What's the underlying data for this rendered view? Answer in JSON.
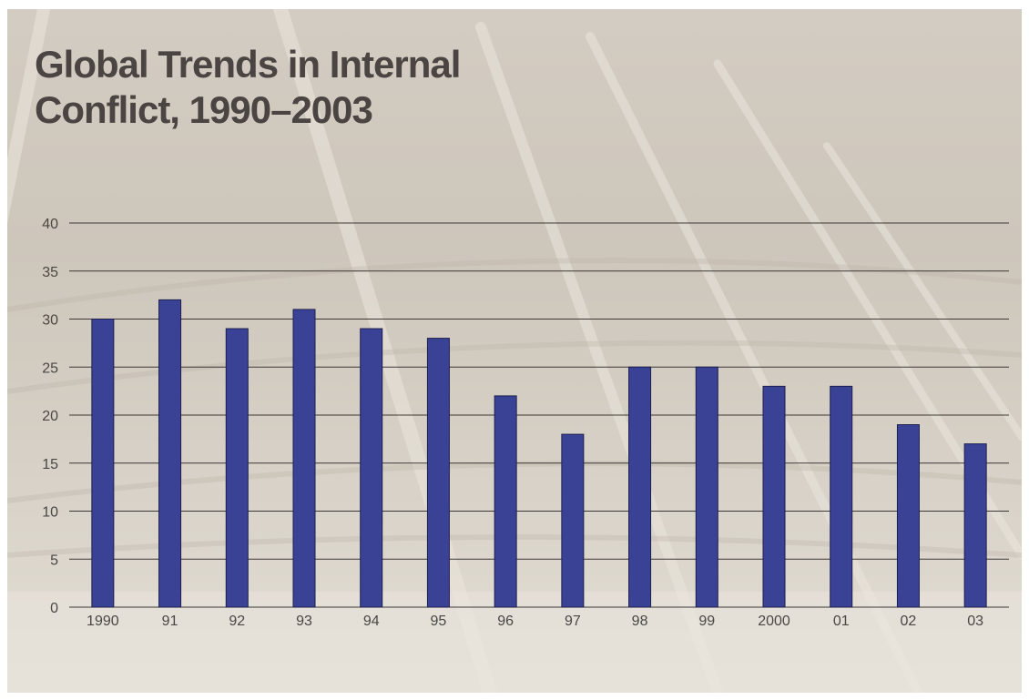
{
  "slide": {
    "title": "Global Trends in Internal\nConflict, 1990–2003"
  },
  "colors": {
    "bar_fill": "#3a4296",
    "bar_stroke": "#1c1f4d",
    "gridline": "#3b3836",
    "tick_text": "#4a4744",
    "title_text": "#4a4542"
  },
  "chart_data": {
    "type": "bar",
    "title": "Global Trends in Internal\nConflict, 1990–2003",
    "xlabel": "",
    "ylabel": "",
    "categories": [
      "1990",
      "91",
      "92",
      "93",
      "94",
      "95",
      "96",
      "97",
      "98",
      "99",
      "2000",
      "01",
      "02",
      "03"
    ],
    "values": [
      30,
      32,
      29,
      31,
      29,
      28,
      22,
      18,
      25,
      25,
      23,
      23,
      19,
      17
    ],
    "ylim": [
      0,
      40
    ],
    "yticks": [
      0,
      5,
      10,
      15,
      20,
      25,
      30,
      35,
      40
    ],
    "grid": true,
    "legend": "none"
  }
}
